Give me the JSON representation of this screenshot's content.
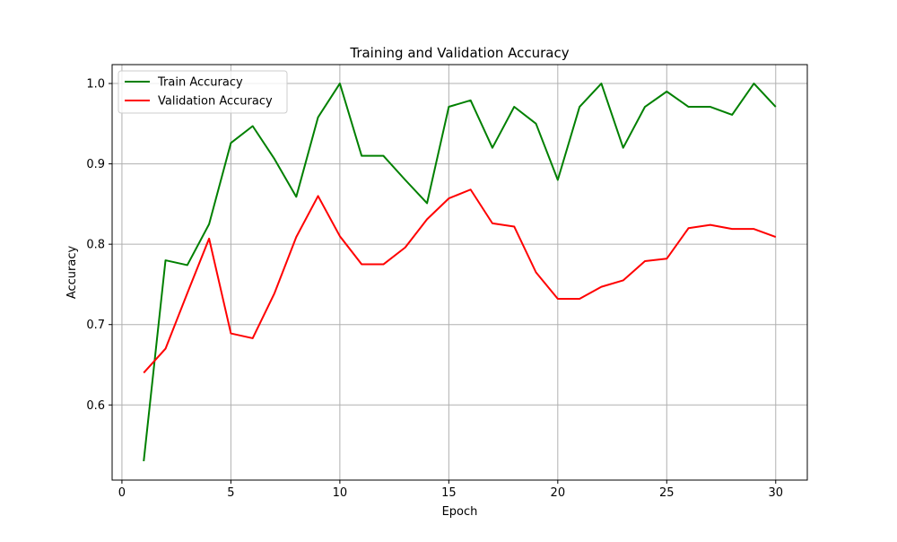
{
  "chart_data": {
    "type": "line",
    "title": "Training and Validation Accuracy",
    "xlabel": "Epoch",
    "ylabel": "Accuracy",
    "xlim": [
      -0.45,
      31.45
    ],
    "ylim": [
      0.5065,
      1.0235
    ],
    "xticks": [
      0,
      5,
      10,
      15,
      20,
      25,
      30
    ],
    "xtick_labels": [
      "0",
      "5",
      "10",
      "15",
      "20",
      "25",
      "30"
    ],
    "yticks": [
      0.6,
      0.7,
      0.8,
      0.9,
      1.0
    ],
    "ytick_labels": [
      "0.6",
      "0.7",
      "0.8",
      "0.9",
      "1.0"
    ],
    "grid": true,
    "legend_position": "upper-left",
    "x": [
      1,
      2,
      3,
      4,
      5,
      6,
      7,
      8,
      9,
      10,
      11,
      12,
      13,
      14,
      15,
      16,
      17,
      18,
      19,
      20,
      21,
      22,
      23,
      24,
      25,
      26,
      27,
      28,
      29,
      30
    ],
    "series": [
      {
        "name": "Train Accuracy",
        "color": "#008000",
        "values": [
          0.53,
          0.78,
          0.774,
          0.825,
          0.926,
          0.947,
          0.906,
          0.859,
          0.958,
          1.0,
          0.91,
          0.91,
          0.88,
          0.851,
          0.971,
          0.979,
          0.92,
          0.971,
          0.95,
          0.88,
          0.971,
          1.0,
          0.92,
          0.971,
          0.99,
          0.971,
          0.971,
          0.961,
          1.0,
          0.971
        ]
      },
      {
        "name": "Validation Accuracy",
        "color": "#ff0000",
        "values": [
          0.64,
          0.67,
          0.739,
          0.807,
          0.689,
          0.683,
          0.739,
          0.809,
          0.86,
          0.81,
          0.775,
          0.775,
          0.796,
          0.831,
          0.857,
          0.868,
          0.826,
          0.822,
          0.765,
          0.732,
          0.732,
          0.747,
          0.755,
          0.779,
          0.782,
          0.82,
          0.824,
          0.819,
          0.819,
          0.809
        ]
      }
    ]
  }
}
